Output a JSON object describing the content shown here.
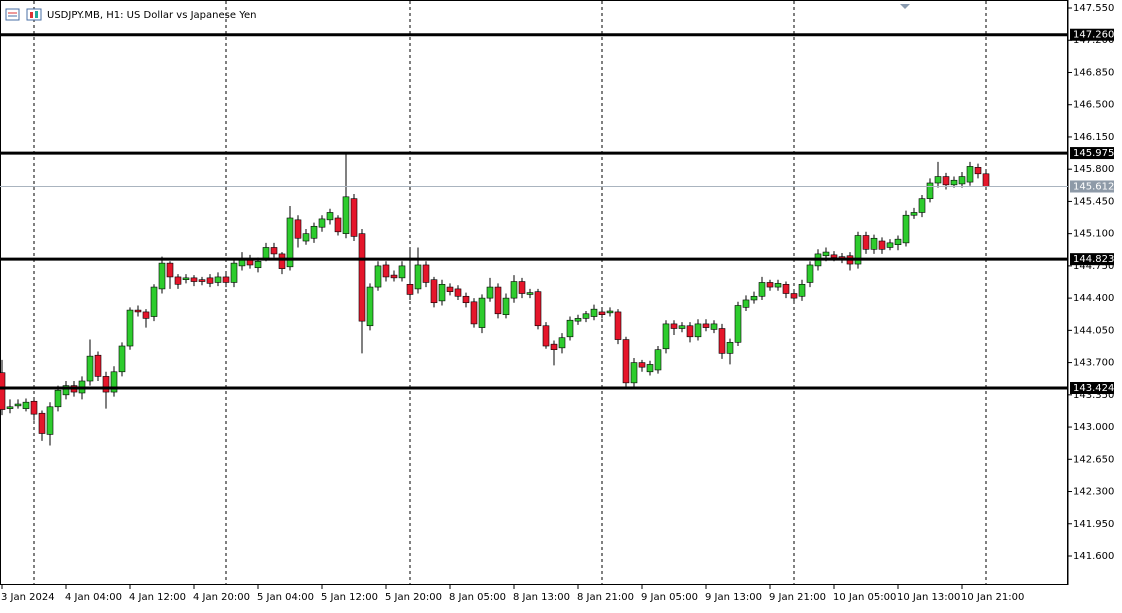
{
  "chart_data": {
    "type": "candlestick",
    "title": "USDJPY.MB, H1:  US Dollar vs Japanese Yen",
    "up_color": "#2ecc2e",
    "down_color": "#e5162b",
    "categories": [
      "3 Jan 2024",
      null,
      null,
      null,
      null,
      null,
      null,
      null,
      "4 Jan 04:00",
      null,
      null,
      null,
      null,
      null,
      null,
      null,
      "4 Jan 12:00",
      null,
      null,
      null,
      null,
      null,
      null,
      null,
      "4 Jan 20:00",
      null,
      null,
      null,
      null,
      null,
      null,
      null,
      "5 Jan 04:00",
      null,
      null,
      null,
      null,
      null,
      null,
      null,
      "5 Jan 12:00",
      null,
      null,
      null,
      null,
      null,
      null,
      null,
      "5 Jan 20:00",
      null,
      null,
      null,
      null,
      null,
      null,
      null,
      "8 Jan 05:00",
      null,
      null,
      null,
      null,
      null,
      null,
      null,
      "8 Jan 13:00",
      null,
      null,
      null,
      null,
      null,
      null,
      null,
      "8 Jan 21:00",
      null,
      null,
      null,
      null,
      null,
      null,
      null,
      "9 Jan 05:00",
      null,
      null,
      null,
      null,
      null,
      null,
      null,
      "9 Jan 13:00",
      null,
      null,
      null,
      null,
      null,
      null,
      null,
      "9 Jan 21:00",
      null,
      null,
      null,
      null,
      null,
      null,
      null,
      "10 Jan 05:00",
      null,
      null,
      null,
      null,
      null,
      null,
      null,
      "10 Jan 13:00",
      null,
      null,
      null,
      null,
      null,
      null,
      null,
      "10 Jan 21:00",
      null,
      null,
      null
    ],
    "open": [
      143.59,
      143.2,
      143.23,
      143.2,
      143.28,
      143.15,
      142.92,
      143.22,
      143.35,
      143.45,
      143.37,
      143.5,
      143.78,
      143.55,
      143.38,
      143.6,
      143.88,
      144.27,
      144.25,
      144.2,
      144.5,
      144.78,
      144.63,
      144.6,
      144.62,
      144.6,
      144.62,
      144.57,
      144.63,
      144.57,
      144.75,
      144.83,
      144.73,
      144.83,
      144.95,
      144.88,
      144.74,
      145.25,
      145.02,
      145.05,
      145.17,
      145.25,
      145.27,
      145.1,
      145.48,
      145.1,
      144.1,
      144.52,
      144.76,
      144.65,
      144.62,
      144.55,
      144.5,
      144.76,
      144.6,
      144.37,
      144.52,
      144.5,
      144.42,
      144.36,
      144.08,
      144.4,
      144.52,
      144.22,
      144.4,
      144.58,
      144.44,
      144.47,
      144.1,
      143.9,
      143.86,
      143.98,
      144.15,
      144.18,
      144.2,
      144.25,
      144.24,
      144.25,
      143.95,
      143.48,
      143.7,
      143.6,
      143.62,
      143.85,
      144.12,
      144.07,
      144.1,
      143.98,
      144.12,
      144.06,
      144.07,
      143.8,
      143.92,
      144.3,
      144.38,
      144.42,
      144.57,
      144.52,
      144.55,
      144.45,
      144.42,
      144.57,
      144.75,
      144.86,
      144.87,
      144.85,
      144.86,
      144.77,
      145.08,
      144.93,
      145.02,
      144.95,
      144.98,
      145.0,
      145.3,
      145.33,
      145.48,
      145.65,
      145.72,
      145.63,
      145.64,
      145.66,
      145.82,
      145.75
    ],
    "high": [
      143.73,
      143.3,
      143.3,
      143.31,
      143.3,
      143.18,
      143.27,
      143.45,
      143.5,
      143.5,
      143.55,
      143.95,
      143.82,
      143.6,
      143.66,
      143.92,
      144.3,
      144.32,
      144.28,
      144.55,
      144.85,
      144.8,
      144.66,
      144.66,
      144.65,
      144.63,
      144.66,
      144.68,
      144.68,
      144.82,
      144.9,
      144.87,
      144.84,
      145.0,
      145.0,
      144.9,
      145.4,
      145.3,
      145.15,
      145.22,
      145.3,
      145.37,
      145.3,
      145.98,
      145.53,
      145.15,
      144.56,
      144.8,
      144.8,
      144.7,
      144.8,
      144.95,
      144.95,
      144.8,
      144.63,
      144.6,
      144.56,
      144.54,
      144.46,
      144.4,
      144.44,
      144.62,
      144.56,
      144.45,
      144.65,
      144.62,
      144.5,
      144.5,
      144.14,
      143.94,
      144.02,
      144.2,
      144.22,
      144.26,
      144.33,
      144.3,
      144.3,
      144.28,
      143.98,
      143.75,
      143.73,
      143.72,
      143.88,
      144.16,
      144.16,
      144.14,
      144.14,
      144.17,
      144.17,
      144.16,
      144.12,
      143.96,
      144.36,
      144.43,
      144.47,
      144.63,
      144.6,
      144.6,
      144.58,
      144.48,
      144.6,
      144.8,
      144.93,
      144.95,
      144.91,
      144.89,
      144.9,
      145.12,
      145.12,
      145.09,
      145.06,
      145.04,
      145.08,
      145.35,
      145.38,
      145.52,
      145.7,
      145.88,
      145.76,
      145.72,
      145.77,
      145.88,
      145.86,
      145.79
    ],
    "low": [
      143.13,
      143.15,
      143.2,
      143.17,
      143.07,
      142.85,
      142.8,
      143.17,
      143.3,
      143.33,
      143.3,
      143.45,
      143.5,
      143.2,
      143.33,
      143.55,
      143.84,
      144.2,
      144.08,
      144.15,
      144.45,
      144.5,
      144.5,
      144.56,
      144.53,
      144.54,
      144.52,
      144.53,
      144.52,
      144.52,
      144.7,
      144.72,
      144.68,
      144.8,
      144.84,
      144.66,
      144.7,
      144.95,
      144.98,
      145.0,
      145.12,
      145.2,
      145.08,
      145.05,
      145.02,
      143.8,
      144.05,
      144.48,
      144.58,
      144.58,
      144.58,
      144.38,
      144.45,
      144.52,
      144.3,
      144.32,
      144.43,
      144.38,
      144.3,
      144.08,
      144.02,
      144.36,
      144.18,
      144.18,
      144.35,
      144.4,
      144.4,
      144.06,
      143.85,
      143.67,
      143.8,
      143.94,
      144.11,
      144.14,
      144.16,
      144.18,
      144.2,
      143.9,
      143.42,
      143.44,
      143.6,
      143.56,
      143.58,
      143.8,
      144.0,
      144.03,
      143.92,
      143.94,
      144.04,
      144.02,
      143.74,
      143.68,
      143.88,
      144.26,
      144.34,
      144.38,
      144.48,
      144.48,
      144.4,
      144.36,
      144.37,
      144.52,
      144.7,
      144.8,
      144.8,
      144.78,
      144.7,
      144.72,
      144.88,
      144.88,
      144.88,
      144.92,
      144.92,
      144.96,
      145.26,
      145.28,
      145.44,
      145.6,
      145.58,
      145.6,
      145.6,
      145.62,
      145.7,
      145.6
    ],
    "close": [
      143.19,
      143.22,
      143.25,
      143.27,
      143.14,
      142.93,
      143.22,
      143.4,
      143.45,
      143.38,
      143.5,
      143.77,
      143.55,
      143.38,
      143.6,
      143.88,
      144.27,
      144.25,
      144.18,
      144.52,
      144.78,
      144.63,
      144.55,
      144.62,
      144.58,
      144.58,
      144.56,
      144.63,
      144.57,
      144.78,
      144.83,
      144.76,
      144.8,
      144.95,
      144.88,
      144.72,
      145.27,
      145.05,
      145.1,
      145.18,
      145.26,
      145.33,
      145.12,
      145.5,
      145.07,
      144.15,
      144.52,
      144.75,
      144.63,
      144.62,
      144.75,
      144.44,
      144.76,
      144.57,
      144.35,
      144.55,
      144.47,
      144.42,
      144.35,
      144.12,
      144.4,
      144.52,
      144.23,
      144.4,
      144.58,
      144.45,
      144.46,
      144.1,
      143.88,
      143.84,
      143.97,
      144.16,
      144.18,
      144.23,
      144.28,
      144.22,
      144.26,
      143.95,
      143.48,
      143.7,
      143.65,
      143.68,
      143.84,
      144.12,
      144.07,
      144.1,
      143.98,
      144.12,
      144.08,
      144.12,
      143.8,
      143.92,
      144.32,
      144.38,
      144.42,
      144.57,
      144.52,
      144.56,
      144.45,
      144.4,
      144.55,
      144.76,
      144.88,
      144.9,
      144.84,
      144.82,
      144.77,
      145.08,
      144.93,
      145.05,
      144.93,
      145.0,
      145.04,
      145.3,
      145.33,
      145.48,
      145.65,
      145.72,
      145.63,
      145.68,
      145.72,
      145.83,
      145.75,
      145.612
    ],
    "ylim": [
      141.285,
      147.637
    ],
    "yticks": [
      {
        "value": 147.55,
        "label": "147.550"
      },
      {
        "value": 147.2,
        "label": "147.200"
      },
      {
        "value": 146.85,
        "label": "146.850"
      },
      {
        "value": 146.5,
        "label": "146.500"
      },
      {
        "value": 146.15,
        "label": "146.150"
      },
      {
        "value": 145.8,
        "label": "145.800"
      },
      {
        "value": 145.45,
        "label": "145.450"
      },
      {
        "value": 145.1,
        "label": "145.100"
      },
      {
        "value": 144.75,
        "label": "144.750"
      },
      {
        "value": 144.4,
        "label": "144.400"
      },
      {
        "value": 144.05,
        "label": "144.050"
      },
      {
        "value": 143.7,
        "label": "143.700"
      },
      {
        "value": 143.35,
        "label": "143.350"
      },
      {
        "value": 143.0,
        "label": "143.000"
      },
      {
        "value": 142.65,
        "label": "142.650"
      },
      {
        "value": 142.3,
        "label": "142.300"
      },
      {
        "value": 141.95,
        "label": "141.950"
      },
      {
        "value": 141.6,
        "label": "141.600"
      }
    ],
    "levels": [
      {
        "value": 147.26,
        "label": "147.260"
      },
      {
        "value": 145.975,
        "label": "145.975"
      },
      {
        "value": 144.823,
        "label": "144.823"
      },
      {
        "value": 143.424,
        "label": "143.424"
      }
    ],
    "last_price": {
      "value": 145.612,
      "label": "145.612"
    }
  }
}
